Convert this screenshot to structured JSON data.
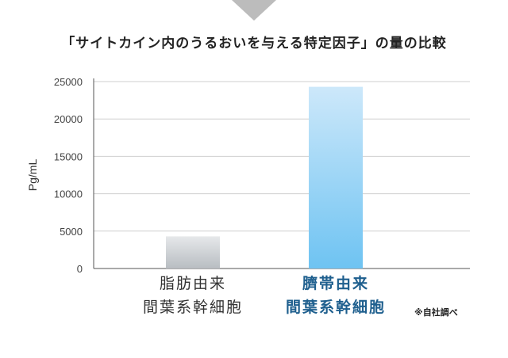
{
  "title": "「サイトカイン内のうるおいを与える特定因子」の量の比較",
  "source_note": "※自社調べ",
  "colors": {
    "arrow": "#bcbcbc",
    "axis": "#555555",
    "grid": "#cfcfcf",
    "bar_gray_top": "#e6e8ea",
    "bar_gray_bottom": "#b8bdc2",
    "bar_blue_top": "#cde8fa",
    "bar_blue_bottom": "#6ec3f2",
    "highlight_text": "#1e5f8e"
  },
  "chart_data": {
    "type": "bar",
    "title": "「サイトカイン内のうるおいを与える特定因子」の量の比較",
    "xlabel": "",
    "ylabel": "Pg/mL",
    "ylim": [
      0,
      25000
    ],
    "yticks": [
      "0",
      "5000",
      "10000",
      "15000",
      "20000",
      "25000"
    ],
    "grid": true,
    "categories": [
      [
        "脂肪由来",
        "間葉系幹細胞"
      ],
      [
        "臍帯由来",
        "間葉系幹細胞"
      ]
    ],
    "values": [
      4300,
      24300
    ],
    "highlight": [
      false,
      true
    ]
  }
}
